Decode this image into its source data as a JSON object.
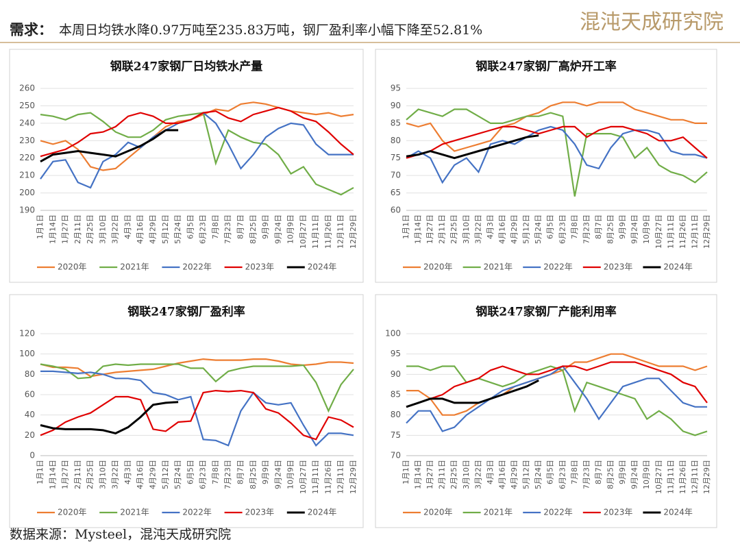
{
  "header": {
    "label": "需求：",
    "text": "本周日均铁水降0.97万吨至235.83万吨，钢厂盈利率小幅下降至52.81%",
    "logo": "混沌天成研究院"
  },
  "footer": "数据来源：Mysteel，混沌天成研究院",
  "chart_data": [
    {
      "type": "line",
      "title": "钢联247家钢厂日均铁水产量",
      "grid": true,
      "categories": [
        "1月1日",
        "1月14日",
        "1月27日",
        "2月11日",
        "2月25日",
        "3月10日",
        "3月22日",
        "4月3日",
        "4月16日",
        "4月29日",
        "5月12日",
        "5月24日",
        "6月5日",
        "6月23日",
        "7月8日",
        "7月23日",
        "8月7日",
        "8月25日",
        "9月9日",
        "9月24日",
        "10月9日",
        "10月27日",
        "11月11日",
        "11月26日",
        "12月11日",
        "12月29日"
      ],
      "ylim": [
        190,
        260
      ],
      "yticks": [
        190,
        200,
        210,
        220,
        230,
        240,
        250,
        260
      ],
      "series": [
        {
          "name": "2020年",
          "color": "#ED7D31",
          "values": [
            230,
            228,
            230,
            225,
            215,
            213,
            214,
            220,
            226,
            232,
            238,
            241,
            242,
            245,
            248,
            247,
            251,
            252,
            251,
            249,
            247,
            246,
            245,
            246,
            244,
            245
          ]
        },
        {
          "name": "2021年",
          "color": "#70AD47",
          "values": [
            245,
            244,
            242,
            245,
            246,
            241,
            235,
            232,
            232,
            236,
            242,
            244,
            245,
            246,
            217,
            236,
            232,
            229,
            228,
            222,
            211,
            215,
            205,
            202,
            199,
            203
          ]
        },
        {
          "name": "2022年",
          "color": "#4472C4",
          "values": [
            208,
            218,
            219,
            206,
            203,
            218,
            222,
            229,
            226,
            232,
            236,
            240,
            242,
            246,
            240,
            228,
            214,
            222,
            232,
            237,
            240,
            239,
            228,
            222,
            222,
            222
          ]
        },
        {
          "name": "2023年",
          "color": "#E00000",
          "values": [
            221,
            223,
            225,
            229,
            234,
            235,
            238,
            244,
            246,
            244,
            240,
            240,
            242,
            246,
            247,
            243,
            241,
            245,
            247,
            249,
            247,
            243,
            241,
            235,
            228,
            222
          ]
        },
        {
          "name": "2024年",
          "color": "#000000",
          "values": [
            218,
            222,
            223,
            224,
            223,
            222,
            221,
            224,
            227,
            231,
            236,
            236,
            null,
            null,
            null,
            null,
            null,
            null,
            null,
            null,
            null,
            null,
            null,
            null,
            null,
            null
          ]
        }
      ]
    },
    {
      "type": "line",
      "title": "钢联247家钢厂高炉开工率",
      "grid": true,
      "categories": [
        "1月1日",
        "1月14日",
        "1月27日",
        "2月11日",
        "2月25日",
        "3月10日",
        "3月22日",
        "4月3日",
        "4月16日",
        "4月29日",
        "5月12日",
        "5月24日",
        "6月5日",
        "6月23日",
        "7月8日",
        "7月23日",
        "8月7日",
        "8月25日",
        "9月9日",
        "9月24日",
        "10月9日",
        "10月27日",
        "11月11日",
        "11月26日",
        "12月11日",
        "12月29日"
      ],
      "ylim": [
        60,
        95
      ],
      "yticks": [
        60,
        65,
        70,
        75,
        80,
        85,
        90,
        95
      ],
      "series": [
        {
          "name": "2020年",
          "color": "#ED7D31",
          "values": [
            85,
            84,
            85,
            80,
            77,
            78,
            79,
            80,
            84,
            85,
            87,
            88,
            90,
            91,
            91,
            90,
            91,
            91,
            91,
            89,
            88,
            87,
            86,
            86,
            85,
            85
          ]
        },
        {
          "name": "2021年",
          "color": "#70AD47",
          "values": [
            86,
            89,
            88,
            87,
            89,
            89,
            87,
            85,
            85,
            86,
            87,
            87,
            88,
            87,
            64,
            82,
            82,
            82,
            81,
            75,
            78,
            73,
            71,
            70,
            68,
            71
          ]
        },
        {
          "name": "2022年",
          "color": "#4472C4",
          "values": [
            75,
            77,
            75,
            68,
            73,
            75,
            71,
            79,
            80,
            79,
            81,
            83,
            84,
            83,
            79,
            73,
            72,
            78,
            82,
            83,
            83,
            82,
            77,
            76,
            76,
            75
          ]
        },
        {
          "name": "2023年",
          "color": "#E00000",
          "values": [
            75,
            76,
            77,
            79,
            80,
            81,
            82,
            83,
            84,
            84,
            83,
            82,
            83,
            84,
            84,
            81,
            83,
            84,
            84,
            83,
            82,
            80,
            80,
            81,
            78,
            75
          ]
        },
        {
          "name": "2024年",
          "color": "#000000",
          "values": [
            75.5,
            76,
            77,
            76,
            75,
            76,
            77,
            78,
            79,
            80,
            81,
            81.5,
            null,
            null,
            null,
            null,
            null,
            null,
            null,
            null,
            null,
            null,
            null,
            null,
            null,
            null
          ]
        }
      ]
    },
    {
      "type": "line",
      "title": "钢联247家钢厂盈利率",
      "grid": true,
      "categories": [
        "1月1日",
        "1月14日",
        "1月27日",
        "2月11日",
        "2月25日",
        "3月10日",
        "3月22日",
        "4月3日",
        "4月16日",
        "4月29日",
        "5月12日",
        "5月24日",
        "6月5日",
        "6月23日",
        "7月8日",
        "7月23日",
        "8月7日",
        "8月25日",
        "9月9日",
        "9月24日",
        "10月9日",
        "10月27日",
        "11月11日",
        "11月26日",
        "12月11日",
        "12月29日"
      ],
      "ylim": [
        0,
        120
      ],
      "yticks": [
        0,
        20,
        40,
        60,
        80,
        100,
        120
      ],
      "series": [
        {
          "name": "2020年",
          "color": "#ED7D31",
          "values": [
            90,
            87,
            87,
            86,
            78,
            80,
            82,
            83,
            84,
            85,
            88,
            91,
            93,
            95,
            94,
            94,
            94,
            95,
            95,
            93,
            90,
            89,
            90,
            92,
            92,
            91
          ]
        },
        {
          "name": "2021年",
          "color": "#70AD47",
          "values": [
            90,
            88,
            85,
            76,
            77,
            88,
            90,
            89,
            90,
            90,
            90,
            90,
            86,
            86,
            73,
            83,
            86,
            88,
            88,
            88,
            88,
            89,
            72,
            44,
            70,
            85
          ]
        },
        {
          "name": "2022年",
          "color": "#4472C4",
          "values": [
            83,
            83,
            82,
            81,
            82,
            80,
            76,
            76,
            74,
            62,
            60,
            55,
            58,
            16,
            15,
            10,
            44,
            62,
            52,
            50,
            52,
            30,
            10,
            22,
            22,
            20
          ]
        },
        {
          "name": "2023年",
          "color": "#E00000",
          "values": [
            20,
            25,
            33,
            38,
            42,
            50,
            58,
            58,
            55,
            26,
            24,
            33,
            34,
            62,
            64,
            63,
            64,
            62,
            46,
            42,
            32,
            20,
            16,
            38,
            35,
            28
          ]
        },
        {
          "name": "2024年",
          "color": "#000000",
          "values": [
            30,
            27,
            26,
            26,
            26,
            25,
            22,
            28,
            38,
            50,
            52,
            52.81,
            null,
            null,
            null,
            null,
            null,
            null,
            null,
            null,
            null,
            null,
            null,
            null,
            null,
            null
          ]
        }
      ]
    },
    {
      "type": "line",
      "title": "钢联247家钢厂产能利用率",
      "grid": true,
      "categories": [
        "1月1日",
        "1月14日",
        "1月27日",
        "2月11日",
        "2月25日",
        "3月10日",
        "3月22日",
        "4月3日",
        "4月16日",
        "4月29日",
        "5月12日",
        "5月24日",
        "6月5日",
        "6月23日",
        "7月8日",
        "7月23日",
        "8月7日",
        "8月25日",
        "9月9日",
        "9月24日",
        "10月9日",
        "10月27日",
        "11月11日",
        "11月26日",
        "12月11日",
        "12月29日"
      ],
      "ylim": [
        70,
        100
      ],
      "yticks": [
        70,
        75,
        80,
        85,
        90,
        95,
        100
      ],
      "series": [
        {
          "name": "2020年",
          "color": "#ED7D31",
          "values": [
            86,
            86,
            84,
            80,
            80,
            81,
            83,
            84,
            85,
            87,
            88,
            89,
            90,
            91,
            93,
            93,
            94,
            95,
            95,
            94,
            93,
            92,
            92,
            92,
            91,
            92
          ]
        },
        {
          "name": "2021年",
          "color": "#70AD47",
          "values": [
            92,
            92,
            91,
            92,
            92,
            88,
            89,
            88,
            87,
            88,
            90,
            91,
            92,
            91,
            81,
            88,
            87,
            86,
            85,
            84,
            79,
            81,
            79,
            76,
            75,
            76
          ]
        },
        {
          "name": "2022年",
          "color": "#4472C4",
          "values": [
            78,
            81,
            81,
            76,
            77,
            80,
            82,
            84,
            86,
            87,
            88,
            89,
            90,
            92,
            88,
            84,
            79,
            83,
            87,
            88,
            89,
            89,
            86,
            83,
            82,
            82
          ]
        },
        {
          "name": "2023年",
          "color": "#E00000",
          "values": [
            82,
            83,
            84,
            85,
            87,
            88,
            89,
            91,
            92,
            91,
            90,
            90,
            91,
            92,
            92,
            91,
            92,
            93,
            93,
            93,
            92,
            91,
            90,
            88,
            87,
            83
          ]
        },
        {
          "name": "2024年",
          "color": "#000000",
          "values": [
            82,
            83,
            84,
            84,
            83,
            83,
            83,
            84,
            85,
            86,
            87,
            88.5,
            null,
            null,
            null,
            null,
            null,
            null,
            null,
            null,
            null,
            null,
            null,
            null,
            null,
            null
          ]
        }
      ]
    }
  ]
}
